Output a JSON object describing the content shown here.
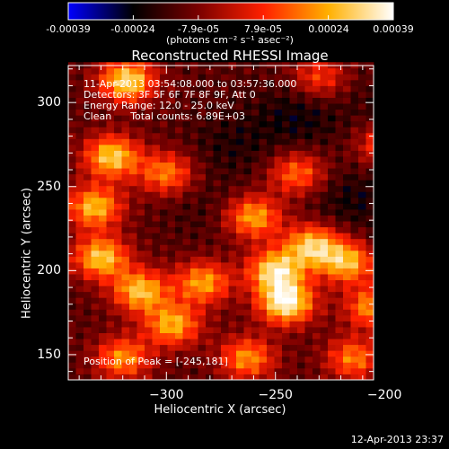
{
  "colorbar": {
    "ticks": [
      "-0.00039",
      "-0.00024",
      "-7.9e-05",
      "7.9e-05",
      "0.00024",
      "0.00039"
    ],
    "units": "(photons cm⁻² s⁻¹ asec⁻²)",
    "range": [
      -0.00039,
      0.00039
    ],
    "colormap": [
      "#0000ff",
      "#000000",
      "#7a0000",
      "#ff2000",
      "#ffb000",
      "#ffffff"
    ]
  },
  "title": "Reconstructed RHESSI Image",
  "info": {
    "time_range": "11-Apr-2013 03:54:08.000 to 03:57:36.000",
    "detectors": "Detectors: 3F 5F 6F 7F 8F 9F, Att 0",
    "energy": "Energy Range: 12.0 - 25.0 keV",
    "clean": "Clean      Total counts: 6.89E+03"
  },
  "peak_label": "Position of Peak = [-245,181]",
  "timestamp": "12-Apr-2013 23:37",
  "chart_data": {
    "type": "heatmap",
    "title": "Reconstructed RHESSI Image",
    "xlabel": "Heliocentric X (arcsec)",
    "ylabel": "Heliocentric Y (arcsec)",
    "xlim": [
      -345,
      -205
    ],
    "ylim": [
      135,
      322
    ],
    "x_ticks": [
      -300,
      -250,
      -200
    ],
    "y_ticks": [
      150,
      200,
      250,
      300
    ],
    "peak_position": [
      -245,
      181
    ],
    "value_range": [
      -0.00039,
      0.00039
    ],
    "sources": [
      {
        "x": -245,
        "y": 181,
        "value": 0.00039
      },
      {
        "x": -250,
        "y": 200,
        "value": 0.00033
      },
      {
        "x": -233,
        "y": 215,
        "value": 0.0003
      },
      {
        "x": -260,
        "y": 232,
        "value": 0.00025
      },
      {
        "x": -318,
        "y": 313,
        "value": 0.00034
      },
      {
        "x": -325,
        "y": 268,
        "value": 0.00031
      },
      {
        "x": -333,
        "y": 238,
        "value": 0.00028
      },
      {
        "x": -330,
        "y": 208,
        "value": 0.0003
      },
      {
        "x": -312,
        "y": 188,
        "value": 0.00029
      },
      {
        "x": -297,
        "y": 168,
        "value": 0.00026
      },
      {
        "x": -283,
        "y": 193,
        "value": 0.00024
      },
      {
        "x": -300,
        "y": 258,
        "value": 0.0002
      },
      {
        "x": -217,
        "y": 205,
        "value": 0.00027
      },
      {
        "x": -205,
        "y": 178,
        "value": 0.00025
      },
      {
        "x": -214,
        "y": 148,
        "value": 0.0002
      },
      {
        "x": -263,
        "y": 148,
        "value": 0.00022
      },
      {
        "x": -240,
        "y": 258,
        "value": 0.00018
      },
      {
        "x": -320,
        "y": 148,
        "value": 0.00022
      },
      {
        "x": -200,
        "y": 275,
        "value": 0.00014
      },
      {
        "x": -230,
        "y": 315,
        "value": 0.00012
      }
    ],
    "negative_regions": [
      {
        "x": -240,
        "y": 292,
        "value": -0.0002
      },
      {
        "x": -270,
        "y": 275,
        "value": -0.00017
      },
      {
        "x": -215,
        "y": 242,
        "value": -0.00019
      },
      {
        "x": -283,
        "y": 238,
        "value": -0.00014
      },
      {
        "x": -183,
        "y": 164,
        "value": -0.00024
      },
      {
        "x": -180,
        "y": 220,
        "value": -0.00016
      },
      {
        "x": -200,
        "y": 300,
        "value": -0.00015
      }
    ]
  }
}
